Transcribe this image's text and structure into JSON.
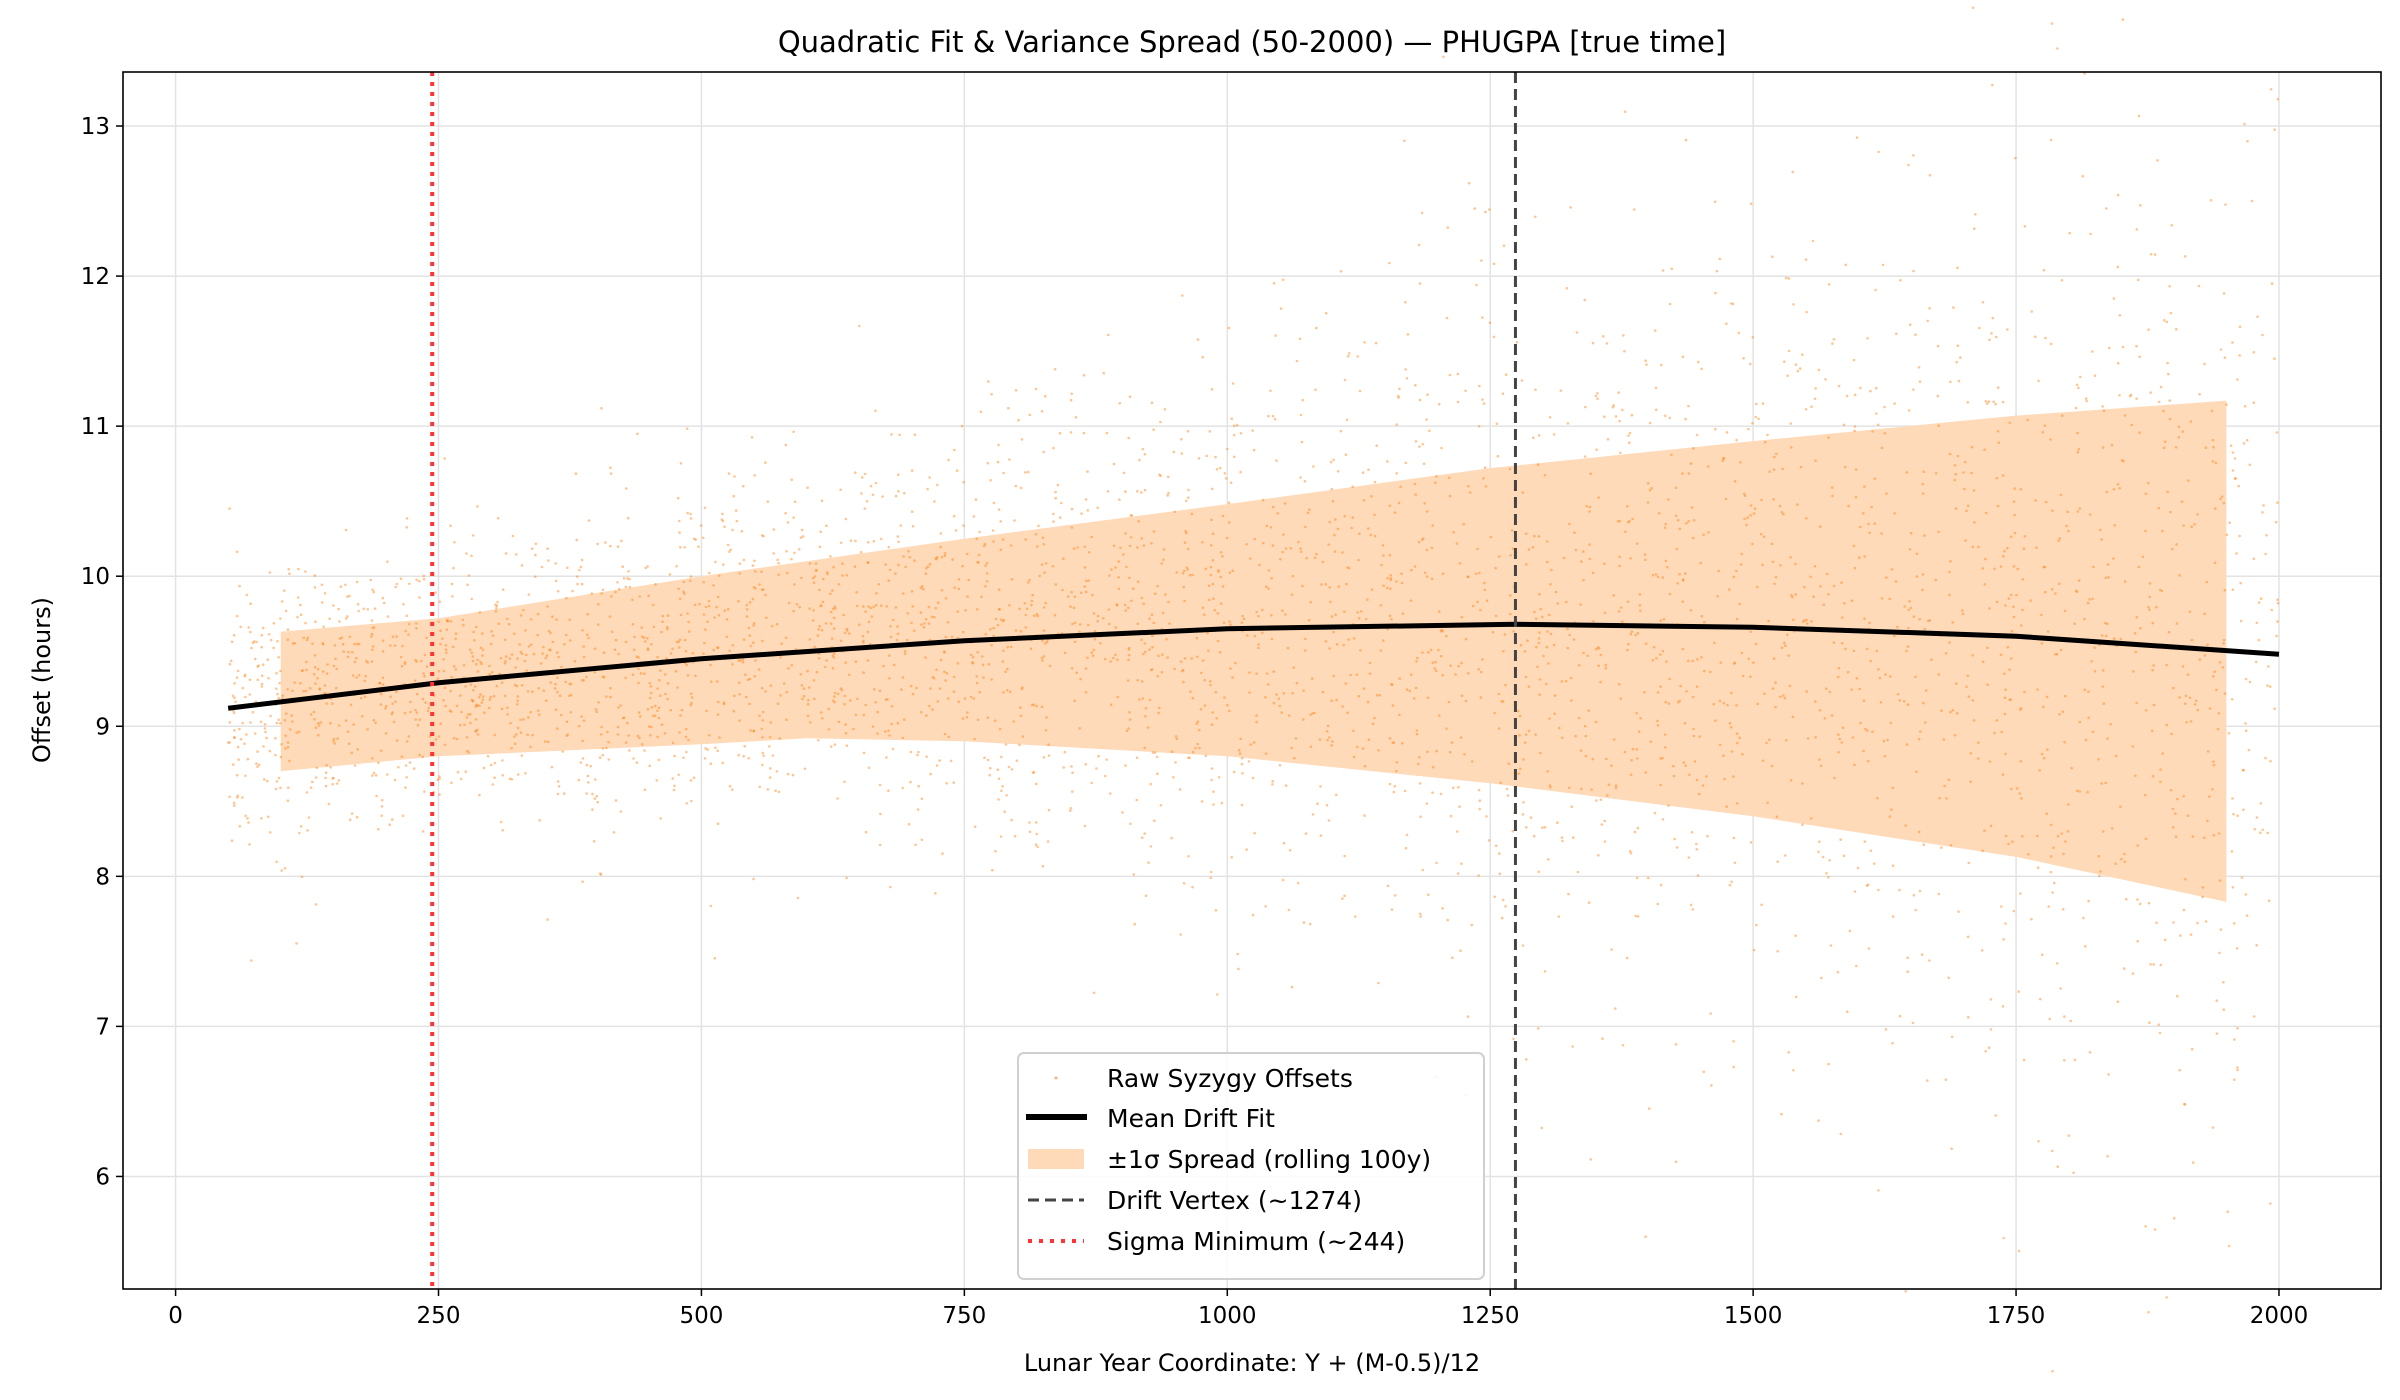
{
  "chart_data": {
    "type": "scatter",
    "title": "Quadratic Fit & Variance Spread (50-2000) — PHUGPA [true time]",
    "xlabel": "Lunar Year Coordinate: Y + (M-0.5)/12",
    "ylabel": "Offset (hours)",
    "xlim": [
      -50,
      2097
    ],
    "ylim": [
      5.25,
      13.36
    ],
    "xticks": [
      0,
      250,
      500,
      750,
      1000,
      1250,
      1500,
      1750,
      2000
    ],
    "yticks": [
      6,
      7,
      8,
      9,
      10,
      11,
      12,
      13
    ],
    "grid": true,
    "legend_position": "bottom-center",
    "series": [
      {
        "name": "Raw Syzygy Offsets",
        "kind": "scatter",
        "color": "#ff7f0e",
        "x_range": [
          50,
          2000
        ]
      },
      {
        "name": "Mean Drift Fit",
        "kind": "line",
        "color": "#000000",
        "x": [
          50,
          250,
          500,
          750,
          1000,
          1274,
          1500,
          1750,
          2000
        ],
        "y": [
          9.12,
          9.29,
          9.45,
          9.57,
          9.65,
          9.68,
          9.66,
          9.6,
          9.48
        ]
      },
      {
        "name": "±1σ Spread (rolling 100y)",
        "kind": "band",
        "color": "#ffdab9",
        "x": [
          100,
          250,
          500,
          600,
          750,
          1000,
          1250,
          1500,
          1750,
          1950
        ],
        "upper": [
          9.63,
          9.72,
          10.0,
          10.1,
          10.25,
          10.48,
          10.72,
          10.9,
          11.07,
          11.17
        ],
        "lower": [
          8.7,
          8.8,
          8.88,
          8.92,
          8.9,
          8.8,
          8.62,
          8.4,
          8.13,
          7.83
        ]
      },
      {
        "name": "Drift Vertex (~1274)",
        "kind": "vline",
        "color": "#444444",
        "x": 1274
      },
      {
        "name": "Sigma Minimum (~244)",
        "kind": "vline",
        "color": "#ff3333",
        "x": 244
      }
    ]
  }
}
